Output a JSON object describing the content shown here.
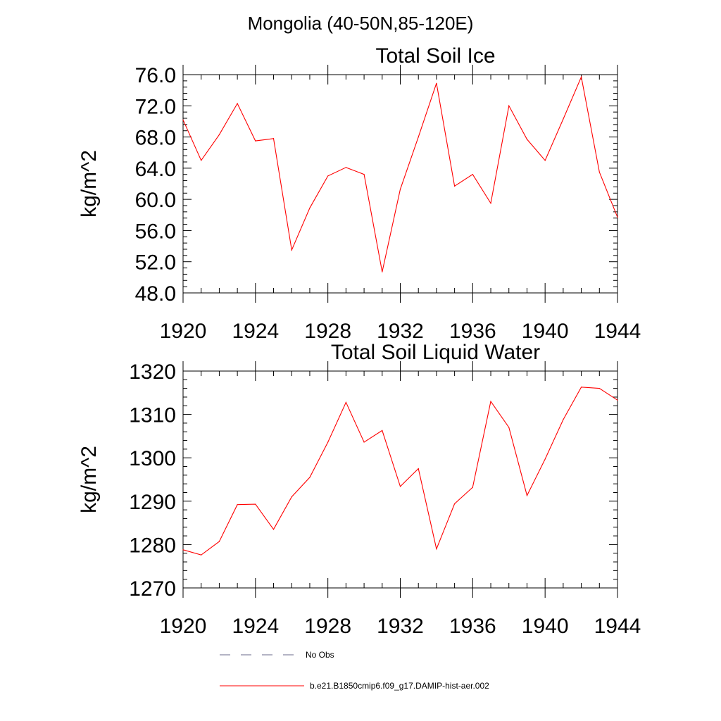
{
  "figure": {
    "title": "Mongolia (40-50N,85-120E)"
  },
  "chart_data": [
    {
      "type": "line",
      "title": "Total Soil Ice",
      "xlabel": "",
      "ylabel": "kg/m^2",
      "xlim": [
        1920,
        1944
      ],
      "ylim": [
        48,
        76
      ],
      "xticks": [
        "1920",
        "1924",
        "1928",
        "1932",
        "1936",
        "1940",
        "1944"
      ],
      "yticks": [
        "48.0",
        "52.0",
        "56.0",
        "60.0",
        "64.0",
        "68.0",
        "72.0",
        "76.0"
      ],
      "x": [
        1920,
        1921,
        1922,
        1923,
        1924,
        1925,
        1926,
        1927,
        1928,
        1929,
        1930,
        1931,
        1932,
        1933,
        1934,
        1935,
        1936,
        1937,
        1938,
        1939,
        1940,
        1941,
        1942,
        1943,
        1944
      ],
      "series": [
        {
          "name": "b.e21.B1850cmip6.f09_g17.DAMIP-hist-aer.002",
          "color": "#ff0000",
          "values": [
            70.2,
            65.0,
            68.3,
            72.3,
            67.5,
            67.8,
            53.5,
            58.9,
            63.0,
            64.1,
            63.2,
            50.7,
            61.3,
            68.0,
            74.9,
            61.7,
            63.2,
            59.5,
            72.0,
            67.7,
            65.0,
            70.3,
            75.7,
            63.5,
            57.7
          ]
        }
      ]
    },
    {
      "type": "line",
      "title": "Total Soil Liquid Water",
      "xlabel": "",
      "ylabel": "kg/m^2",
      "xlim": [
        1920,
        1944
      ],
      "ylim": [
        1270,
        1320
      ],
      "xticks": [
        "1920",
        "1924",
        "1928",
        "1932",
        "1936",
        "1940",
        "1944"
      ],
      "yticks": [
        "1270",
        "1280",
        "1290",
        "1300",
        "1310",
        "1320"
      ],
      "x": [
        1920,
        1921,
        1922,
        1923,
        1924,
        1925,
        1926,
        1927,
        1928,
        1929,
        1930,
        1931,
        1932,
        1933,
        1934,
        1935,
        1936,
        1937,
        1938,
        1939,
        1940,
        1941,
        1942,
        1943,
        1944
      ],
      "series": [
        {
          "name": "b.e21.B1850cmip6.f09_g17.DAMIP-hist-aer.002",
          "color": "#ff0000",
          "values": [
            1278.8,
            1277.6,
            1280.7,
            1289.2,
            1289.3,
            1283.5,
            1291.0,
            1295.5,
            1303.6,
            1312.8,
            1303.6,
            1306.3,
            1293.4,
            1297.5,
            1279.0,
            1289.4,
            1293.2,
            1313.0,
            1307.0,
            1291.3,
            1299.7,
            1308.8,
            1316.3,
            1316.0,
            1313.3
          ]
        }
      ]
    }
  ],
  "legend": [
    {
      "label": "No Obs",
      "style": "dashed",
      "color": "#6a6a8a"
    },
    {
      "label": "b.e21.B1850cmip6.f09_g17.DAMIP-hist-aer.002",
      "style": "solid",
      "color": "#ff0000"
    }
  ]
}
